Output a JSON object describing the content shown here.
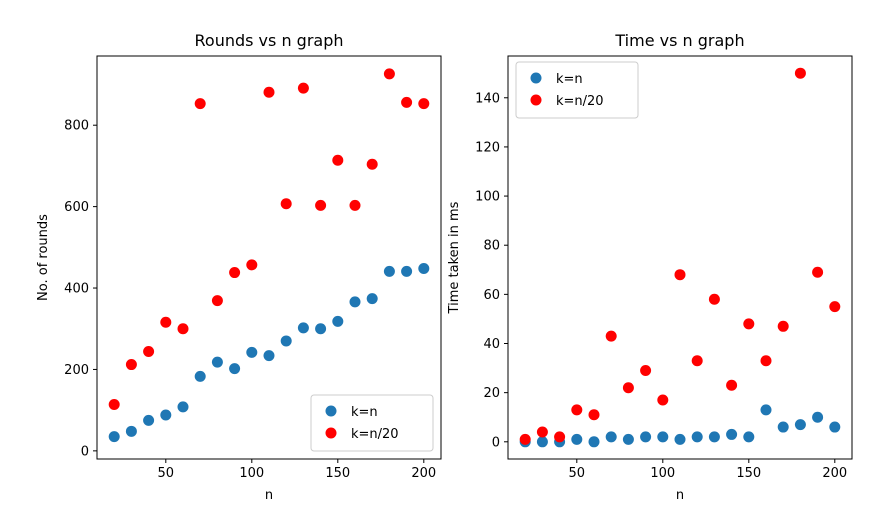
{
  "chart_data": [
    {
      "type": "scatter",
      "title": "Rounds vs n graph",
      "xlabel": "n",
      "ylabel": "No. of rounds",
      "xlim": [
        10,
        210
      ],
      "ylim": [
        -20,
        970
      ],
      "xticks": [
        50,
        100,
        150,
        200
      ],
      "yticks": [
        0,
        200,
        400,
        600,
        800
      ],
      "grid": false,
      "legend_position": "lower-right",
      "series": [
        {
          "name": "k=n",
          "color": "#1f77b4",
          "x": [
            20,
            30,
            40,
            50,
            60,
            70,
            80,
            90,
            100,
            110,
            120,
            130,
            140,
            150,
            160,
            170,
            180,
            190,
            200
          ],
          "y": [
            35,
            48,
            75,
            88,
            108,
            183,
            218,
            202,
            242,
            234,
            270,
            302,
            300,
            318,
            366,
            374,
            441,
            441,
            448
          ]
        },
        {
          "name": "k=n/20",
          "color": "#ff0000",
          "x": [
            20,
            30,
            40,
            50,
            60,
            70,
            80,
            90,
            100,
            110,
            120,
            130,
            140,
            150,
            160,
            170,
            180,
            190,
            200
          ],
          "y": [
            114,
            212,
            244,
            316,
            300,
            853,
            369,
            438,
            457,
            881,
            607,
            891,
            603,
            714,
            603,
            704,
            926,
            856,
            853
          ]
        }
      ]
    },
    {
      "type": "scatter",
      "title": "Time vs n graph",
      "xlabel": "n",
      "ylabel": "Time taken in ms",
      "xlim": [
        10,
        210
      ],
      "ylim": [
        -7,
        157
      ],
      "xticks": [
        50,
        100,
        150,
        200
      ],
      "yticks": [
        0,
        20,
        40,
        60,
        80,
        100,
        120,
        140
      ],
      "grid": false,
      "legend_position": "upper-left",
      "series": [
        {
          "name": "k=n",
          "color": "#1f77b4",
          "x": [
            20,
            30,
            40,
            50,
            60,
            70,
            80,
            90,
            100,
            110,
            120,
            130,
            140,
            150,
            160,
            170,
            180,
            190,
            200
          ],
          "y": [
            0,
            0,
            0,
            1,
            0,
            2,
            1,
            2,
            2,
            1,
            2,
            2,
            3,
            2,
            13,
            6,
            7,
            10,
            6
          ]
        },
        {
          "name": "k=n/20",
          "color": "#ff0000",
          "x": [
            20,
            30,
            40,
            50,
            60,
            70,
            80,
            90,
            100,
            110,
            120,
            130,
            140,
            150,
            160,
            170,
            180,
            190,
            200
          ],
          "y": [
            1,
            4,
            2,
            13,
            11,
            43,
            22,
            29,
            17,
            68,
            33,
            58,
            23,
            48,
            33,
            47,
            150,
            69,
            55
          ]
        }
      ]
    }
  ]
}
